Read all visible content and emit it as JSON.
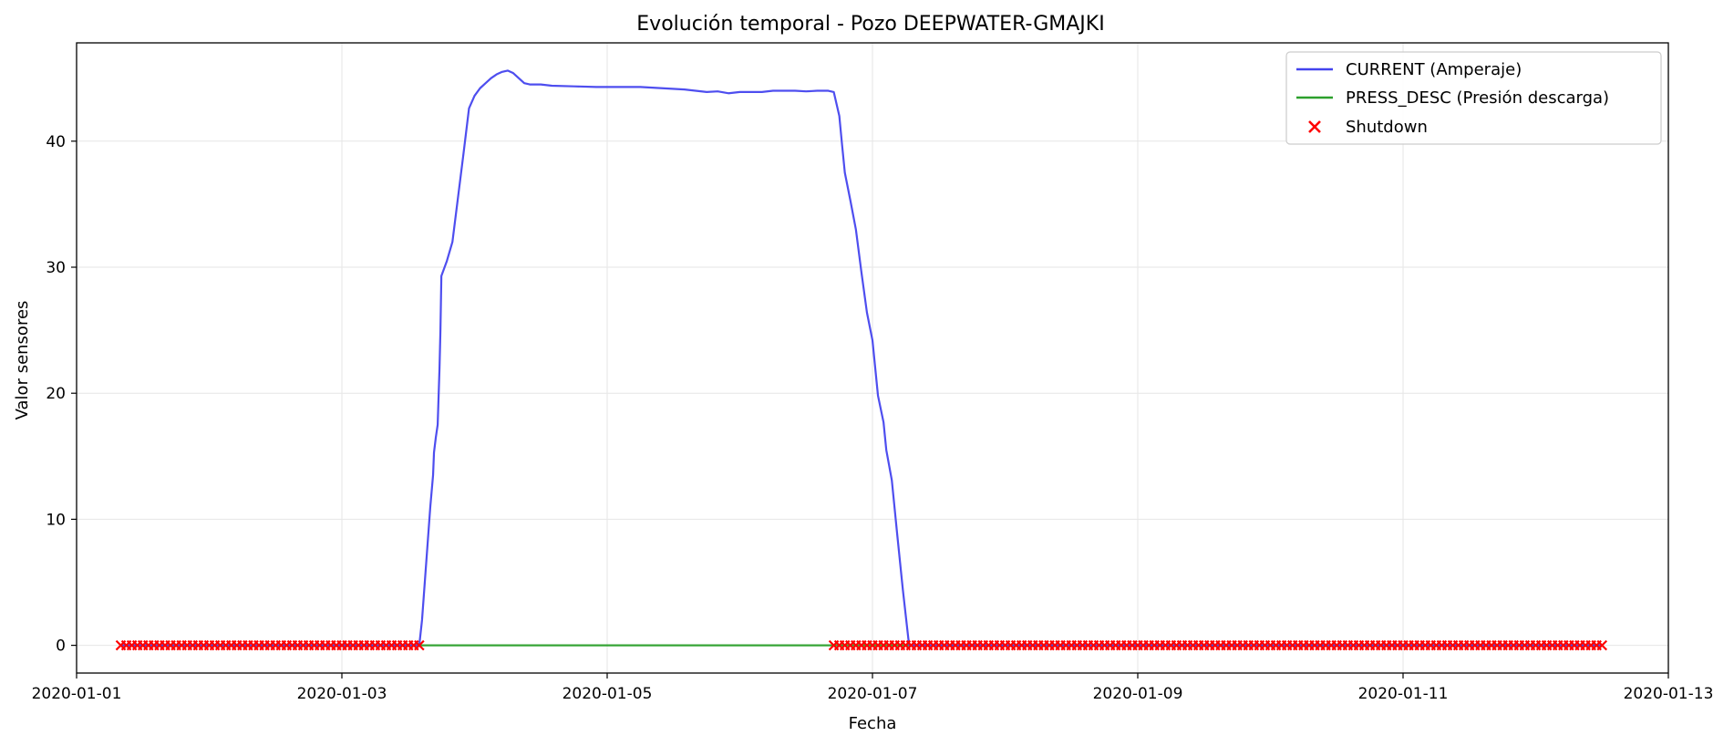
{
  "chart_data": {
    "type": "line",
    "title": "Evolución temporal - Pozo DEEPWATER-GMAJKI",
    "xlabel": "Fecha",
    "ylabel": "Valor sensores",
    "x_axis_type": "date",
    "xlim": [
      "2020-01-01 00:00",
      "2020-01-13 00:00"
    ],
    "ylim": [
      -2.2,
      47.8
    ],
    "x_ticks": [
      "2020-01-01",
      "2020-01-03",
      "2020-01-05",
      "2020-01-07",
      "2020-01-09",
      "2020-01-11",
      "2020-01-13"
    ],
    "y_ticks": [
      0,
      10,
      20,
      30,
      40
    ],
    "grid": true,
    "legend_position": "top-right",
    "series": [
      {
        "name": "CURRENT (Amperaje)",
        "color": "#4444ee",
        "points": [
          [
            "2020-01-01 08:00",
            0
          ],
          [
            "2020-01-03 14:00",
            0
          ],
          [
            "2020-01-03 14:30",
            2
          ],
          [
            "2020-01-03 15:00",
            5
          ],
          [
            "2020-01-03 15:30",
            8
          ],
          [
            "2020-01-03 16:00",
            11
          ],
          [
            "2020-01-03 16:30",
            13.5
          ],
          [
            "2020-01-03 16:40",
            15.3
          ],
          [
            "2020-01-03 17:00",
            16.5
          ],
          [
            "2020-01-03 17:20",
            17.5
          ],
          [
            "2020-01-03 17:40",
            22
          ],
          [
            "2020-01-03 17:50",
            25
          ],
          [
            "2020-01-03 18:00",
            29.3
          ],
          [
            "2020-01-03 19:00",
            30.5
          ],
          [
            "2020-01-03 20:00",
            32
          ],
          [
            "2020-01-03 21:00",
            35.5
          ],
          [
            "2020-01-03 22:00",
            39
          ],
          [
            "2020-01-03 23:00",
            42.6
          ],
          [
            "2020-01-04 00:00",
            43.6
          ],
          [
            "2020-01-04 01:00",
            44.2
          ],
          [
            "2020-01-04 02:00",
            44.6
          ],
          [
            "2020-01-04 03:00",
            45.0
          ],
          [
            "2020-01-04 04:00",
            45.3
          ],
          [
            "2020-01-04 05:00",
            45.5
          ],
          [
            "2020-01-04 06:00",
            45.6
          ],
          [
            "2020-01-04 07:00",
            45.4
          ],
          [
            "2020-01-04 08:00",
            45.0
          ],
          [
            "2020-01-04 09:00",
            44.6
          ],
          [
            "2020-01-04 10:00",
            44.5
          ],
          [
            "2020-01-04 12:00",
            44.5
          ],
          [
            "2020-01-04 14:00",
            44.4
          ],
          [
            "2020-01-04 18:00",
            44.35
          ],
          [
            "2020-01-04 22:00",
            44.3
          ],
          [
            "2020-01-05 00:00",
            44.3
          ],
          [
            "2020-01-05 06:00",
            44.3
          ],
          [
            "2020-01-05 10:00",
            44.2
          ],
          [
            "2020-01-05 14:00",
            44.1
          ],
          [
            "2020-01-05 16:00",
            44.0
          ],
          [
            "2020-01-05 18:00",
            43.9
          ],
          [
            "2020-01-05 20:00",
            43.95
          ],
          [
            "2020-01-05 22:00",
            43.8
          ],
          [
            "2020-01-06 00:00",
            43.9
          ],
          [
            "2020-01-06 02:00",
            43.9
          ],
          [
            "2020-01-06 04:00",
            43.9
          ],
          [
            "2020-01-06 06:00",
            44.0
          ],
          [
            "2020-01-06 08:00",
            44.0
          ],
          [
            "2020-01-06 10:00",
            44.0
          ],
          [
            "2020-01-06 12:00",
            43.95
          ],
          [
            "2020-01-06 14:00",
            44.0
          ],
          [
            "2020-01-06 16:00",
            44.0
          ],
          [
            "2020-01-06 17:00",
            43.9
          ],
          [
            "2020-01-06 18:00",
            42
          ],
          [
            "2020-01-06 18:30",
            39.7
          ],
          [
            "2020-01-06 19:00",
            37.5
          ],
          [
            "2020-01-06 20:00",
            35.3
          ],
          [
            "2020-01-06 21:00",
            33
          ],
          [
            "2020-01-06 22:00",
            29.6
          ],
          [
            "2020-01-06 23:00",
            26.4
          ],
          [
            "2020-01-07 00:00",
            24.2
          ],
          [
            "2020-01-07 01:00",
            19.8
          ],
          [
            "2020-01-07 02:00",
            17.7
          ],
          [
            "2020-01-07 02:30",
            15.5
          ],
          [
            "2020-01-07 03:30",
            13.1
          ],
          [
            "2020-01-07 04:30",
            8.7
          ],
          [
            "2020-01-07 05:30",
            4.4
          ],
          [
            "2020-01-07 06:30",
            0.5
          ],
          [
            "2020-01-07 06:40",
            0
          ],
          [
            "2020-01-12 12:00",
            0
          ]
        ]
      },
      {
        "name": "PRESS_DESC (Presión descarga)",
        "color": "#2ca02c",
        "points": [
          [
            "2020-01-01 08:00",
            0
          ],
          [
            "2020-01-12 12:00",
            0
          ]
        ]
      }
    ],
    "shutdown": {
      "name": "Shutdown",
      "color": "#ff0000",
      "marker": "x",
      "value": 0,
      "ranges": [
        [
          "2020-01-01 08:00",
          "2020-01-03 14:30"
        ],
        [
          "2020-01-06 17:00",
          "2020-01-12 12:00"
        ]
      ]
    }
  }
}
